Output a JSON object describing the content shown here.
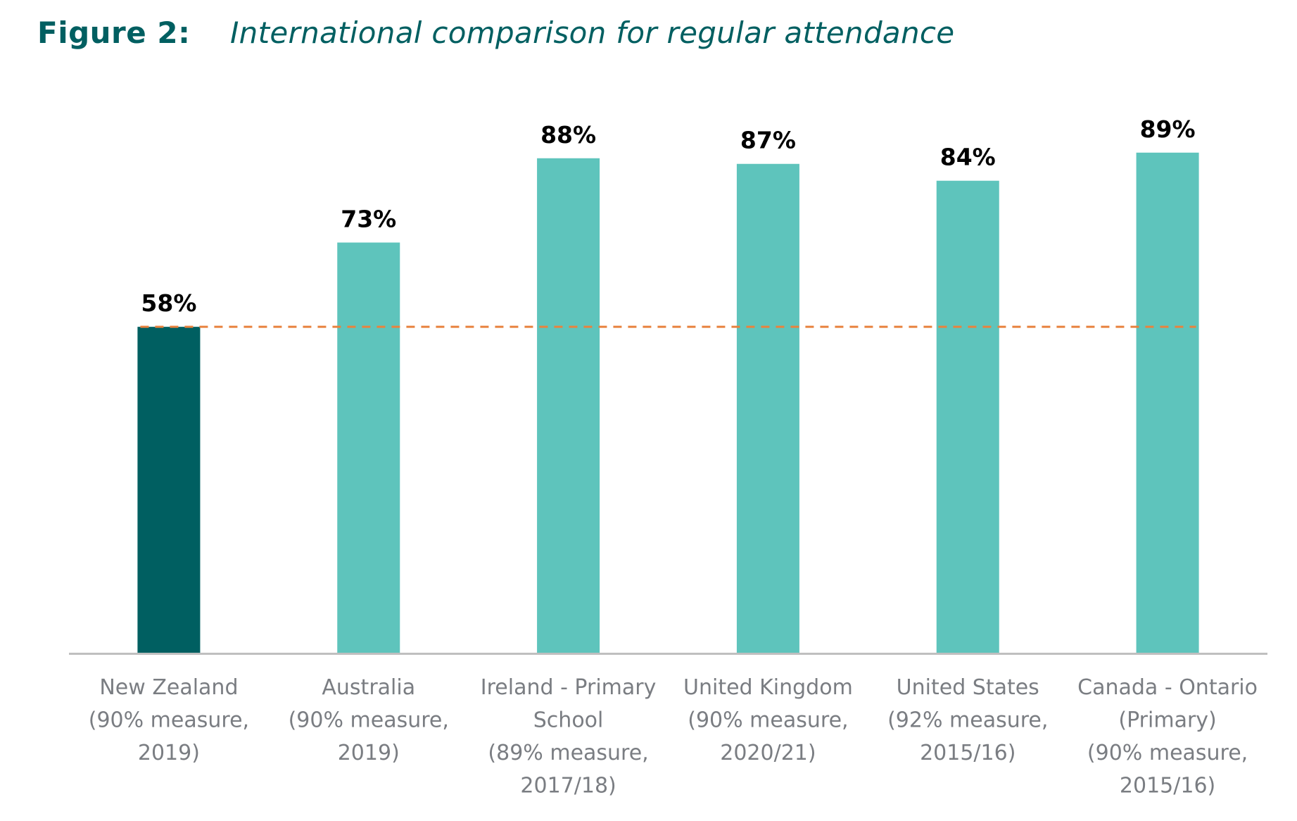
{
  "figure": {
    "label": "Figure 2:",
    "title": "International comparison for regular attendance"
  },
  "colors": {
    "highlight_bar": "#005f61",
    "bar": "#5ec4bc",
    "reference_line": "#e8823e",
    "axis": "#bfbfbf",
    "category_text": "#7a7d82",
    "title": "#005f61"
  },
  "chart_data": {
    "type": "bar",
    "title": "International comparison for regular attendance",
    "xlabel": "",
    "ylabel": "",
    "ylim": [
      0,
      100
    ],
    "grid": false,
    "legend": "none",
    "categories": [
      [
        "New Zealand",
        "(90% measure,",
        "2019)"
      ],
      [
        "Australia",
        "(90% measure,",
        "2019)"
      ],
      [
        "Ireland - Primary",
        "School",
        "(89% measure,",
        "2017/18)"
      ],
      [
        "United Kingdom",
        "(90% measure,",
        "2020/21)"
      ],
      [
        "United States",
        "(92% measure,",
        "2015/16)"
      ],
      [
        "Canada - Ontario",
        "(Primary)",
        "(90% measure,",
        "2015/16)"
      ]
    ],
    "values": [
      58,
      73,
      88,
      87,
      84,
      89
    ],
    "data_labels": [
      "58%",
      "73%",
      "88%",
      "87%",
      "84%",
      "89%"
    ],
    "highlight_index": 0,
    "reference_line": {
      "value": 58,
      "style": "dashed"
    }
  }
}
